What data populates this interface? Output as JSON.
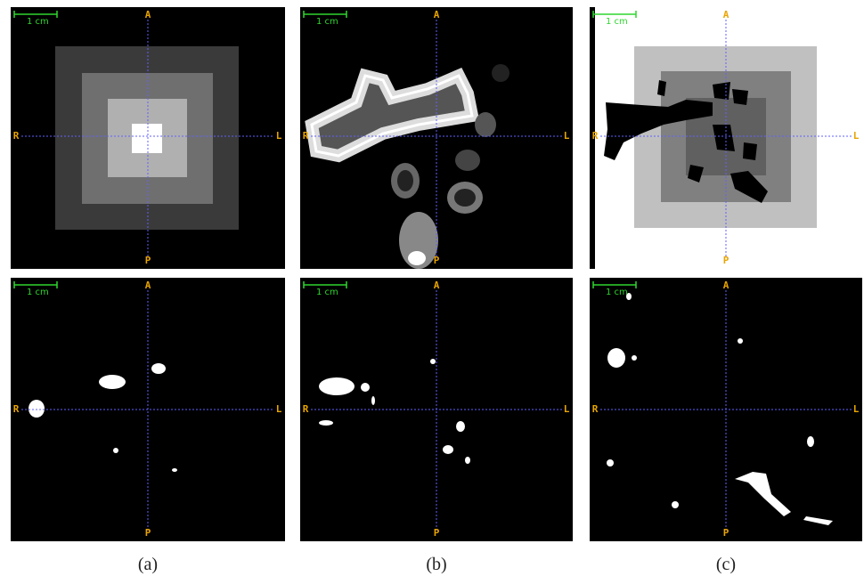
{
  "panels": [
    {
      "scale": "1 cm",
      "top": "A",
      "left": "R",
      "right": "L",
      "bottom": "P"
    },
    {
      "scale": "1 cm",
      "top": "A",
      "left": "R",
      "right": "L",
      "bottom": "P"
    },
    {
      "scale": "1 cm",
      "top": "A",
      "left": "R",
      "right": "L",
      "bottom": "P"
    },
    {
      "scale": "1 cm",
      "top": "A",
      "left": "R",
      "right": "L",
      "bottom": "P"
    },
    {
      "scale": "1 cm",
      "top": "A",
      "left": "R",
      "right": "L",
      "bottom": "P"
    },
    {
      "scale": "1 cm",
      "top": "A",
      "left": "R",
      "right": "L",
      "bottom": "P"
    }
  ],
  "captions": [
    "(a)",
    "(b)",
    "(c)"
  ]
}
